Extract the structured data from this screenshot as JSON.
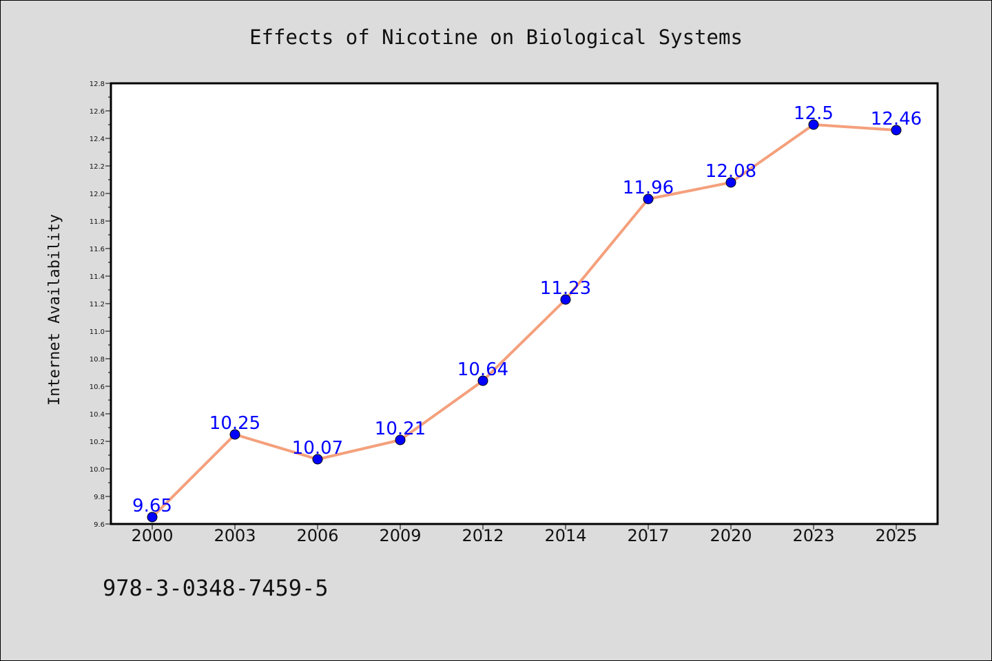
{
  "colors": {
    "figure_background": "#dcdcdc",
    "plot_background": "#ffffff",
    "line": "#f4a07c",
    "marker": "#0000ff",
    "data_label": "#0000ff"
  },
  "chart_data": {
    "type": "line",
    "title": "Effects of Nicotine on Biological Systems",
    "xlabel": "",
    "ylabel": "Internet Availability",
    "categories": [
      "2000",
      "2003",
      "2006",
      "2009",
      "2012",
      "2014",
      "2017",
      "2020",
      "2023",
      "2025"
    ],
    "series": [
      {
        "values": [
          9.65,
          10.25,
          10.07,
          10.21,
          10.64,
          11.23,
          11.96,
          12.08,
          12.5,
          12.46
        ],
        "labels": [
          "9.65",
          "10.25",
          "10.07",
          "10.21",
          "10.64",
          "11.23",
          "11.96",
          "12.08",
          "12.5",
          "12.46"
        ]
      }
    ],
    "ylim": [
      9.6,
      12.8
    ],
    "yticks": [
      "9.6",
      "9.8",
      "10.0",
      "10.2",
      "10.4",
      "10.6",
      "10.8",
      "11.0",
      "11.2",
      "11.4",
      "11.6",
      "11.8",
      "12.0",
      "12.2",
      "12.4",
      "12.6",
      "12.8"
    ],
    "grid": false,
    "legend": "none"
  },
  "footer": {
    "isbn": "978-3-0348-7459-5"
  }
}
